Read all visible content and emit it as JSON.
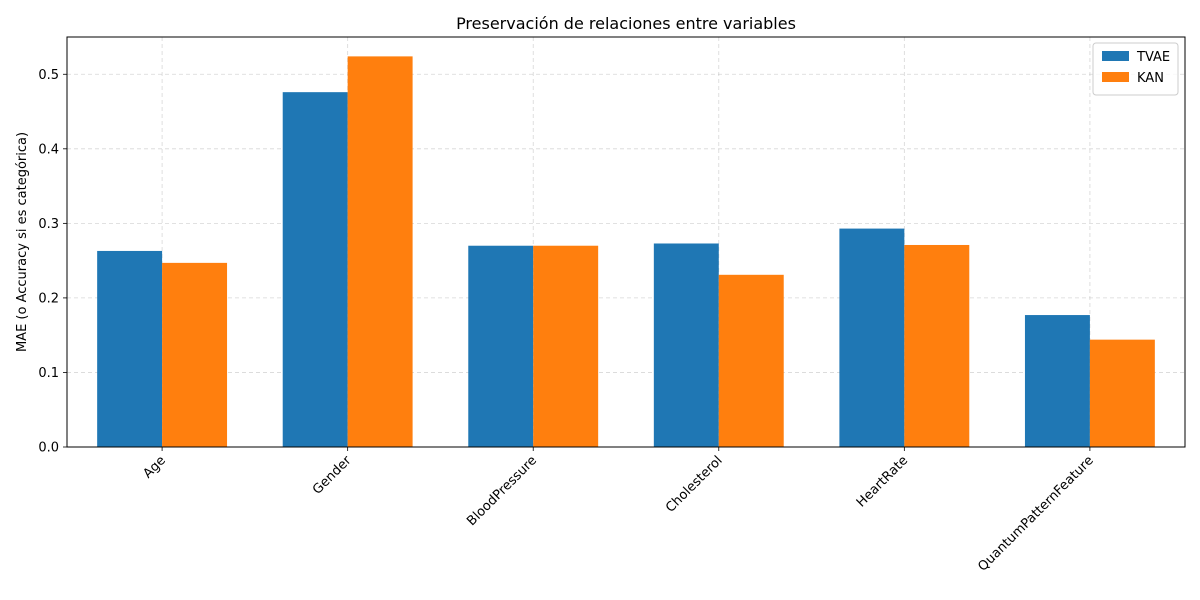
{
  "chart_data": {
    "type": "bar",
    "title": "Preservación de relaciones entre variables",
    "xlabel": "",
    "ylabel": "MAE (o Accuracy si es categórica)",
    "categories": [
      "Age",
      "Gender",
      "BloodPressure",
      "Cholesterol",
      "HeartRate",
      "QuantumPatternFeature"
    ],
    "series": [
      {
        "name": "TVAE",
        "color": "#1f77b4",
        "values": [
          0.263,
          0.476,
          0.27,
          0.273,
          0.293,
          0.177
        ]
      },
      {
        "name": "KAN",
        "color": "#ff7f0e",
        "values": [
          0.247,
          0.524,
          0.27,
          0.231,
          0.271,
          0.144
        ]
      }
    ],
    "ylim": [
      0,
      0.55
    ],
    "yticks": [
      0.0,
      0.1,
      0.2,
      0.3,
      0.4,
      0.5
    ],
    "ytick_labels": [
      "0.0",
      "0.1",
      "0.2",
      "0.3",
      "0.4",
      "0.5"
    ],
    "grid": true,
    "legend_position": "top-right"
  }
}
